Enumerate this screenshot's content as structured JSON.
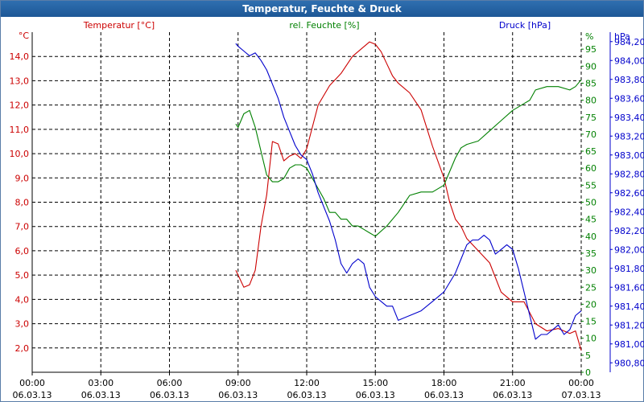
{
  "window": {
    "title": "Temperatur, Feuchte & Druck"
  },
  "colors": {
    "temperature": "#cc0000",
    "humidity": "#008000",
    "pressure": "#0000cc",
    "grid": "#000000",
    "title_bg": "#1d5796"
  },
  "chart_data": {
    "type": "line",
    "title": "Temperatur, Feuchte & Druck",
    "x_axis": {
      "range_hours": [
        0,
        24
      ],
      "ticks": [
        {
          "hour": 0,
          "time": "00:00",
          "date": "06.03.13"
        },
        {
          "hour": 3,
          "time": "03:00",
          "date": "06.03.13"
        },
        {
          "hour": 6,
          "time": "06:00",
          "date": "06.03.13"
        },
        {
          "hour": 9,
          "time": "09:00",
          "date": "06.03.13"
        },
        {
          "hour": 12,
          "time": "12:00",
          "date": "06.03.13"
        },
        {
          "hour": 15,
          "time": "15:00",
          "date": "06.03.13"
        },
        {
          "hour": 18,
          "time": "18:00",
          "date": "06.03.13"
        },
        {
          "hour": 21,
          "time": "21:00",
          "date": "06.03.13"
        },
        {
          "hour": 24,
          "time": "00:00",
          "date": "07.03.13"
        }
      ]
    },
    "axes": {
      "temperature": {
        "label": "Temperatur [°C]",
        "unit": "°C",
        "range": [
          1.0,
          15.0
        ],
        "ticks": [
          [
            "2,0",
            2
          ],
          [
            "3,0",
            3
          ],
          [
            "4,0",
            4
          ],
          [
            "5,0",
            5
          ],
          [
            "6,0",
            6
          ],
          [
            "7,0",
            7
          ],
          [
            "8,0",
            8
          ],
          [
            "9,0",
            9
          ],
          [
            "10,0",
            10
          ],
          [
            "11,0",
            11
          ],
          [
            "12,0",
            12
          ],
          [
            "13,0",
            13
          ],
          [
            "14,0",
            14
          ]
        ]
      },
      "humidity": {
        "label": "rel. Feuchte [%]",
        "unit": "%",
        "range": [
          0,
          100
        ],
        "ticks": [
          [
            "0",
            0
          ],
          [
            "5",
            5
          ],
          [
            "10",
            10
          ],
          [
            "15",
            15
          ],
          [
            "20",
            20
          ],
          [
            "25",
            25
          ],
          [
            "30",
            30
          ],
          [
            "35",
            35
          ],
          [
            "40",
            40
          ],
          [
            "45",
            45
          ],
          [
            "50",
            50
          ],
          [
            "55",
            55
          ],
          [
            "60",
            60
          ],
          [
            "65",
            65
          ],
          [
            "70",
            70
          ],
          [
            "75",
            75
          ],
          [
            "80",
            80
          ],
          [
            "85",
            85
          ],
          [
            "90",
            90
          ],
          [
            "95",
            95
          ]
        ]
      },
      "pressure": {
        "label": "Druck [hPa]",
        "unit": "hPa",
        "range": [
          980.7,
          984.3
        ],
        "ticks": [
          [
            "980,80",
            980.8
          ],
          [
            "981,00",
            981.0
          ],
          [
            "981,20",
            981.2
          ],
          [
            "981,40",
            981.4
          ],
          [
            "981,60",
            981.6
          ],
          [
            "981,80",
            981.8
          ],
          [
            "982,00",
            982.0
          ],
          [
            "982,20",
            982.2
          ],
          [
            "982,40",
            982.4
          ],
          [
            "982,60",
            982.6
          ],
          [
            "982,80",
            982.8
          ],
          [
            "983,00",
            983.0
          ],
          [
            "983,20",
            983.2
          ],
          [
            "983,40",
            983.4
          ],
          [
            "983,60",
            983.6
          ],
          [
            "983,80",
            983.8
          ],
          [
            "984,00",
            984.0
          ],
          [
            "984,20",
            984.2
          ]
        ]
      }
    },
    "series": [
      {
        "name": "Temperatur [°C]",
        "axis": "temperature",
        "x": [
          8.9,
          9.0,
          9.25,
          9.5,
          9.75,
          10.0,
          10.25,
          10.5,
          10.75,
          11.0,
          11.25,
          11.5,
          11.75,
          12.0,
          12.5,
          13.0,
          13.5,
          14.0,
          14.5,
          14.75,
          15.0,
          15.25,
          15.5,
          15.75,
          16.0,
          16.5,
          17.0,
          17.5,
          18.0,
          18.25,
          18.5,
          18.75,
          19.0,
          19.5,
          20.0,
          20.5,
          21.0,
          21.5,
          22.0,
          22.5,
          23.0,
          23.5,
          23.75,
          24.0
        ],
        "values": [
          5.2,
          5.0,
          4.5,
          4.6,
          5.2,
          7.0,
          8.3,
          10.5,
          10.4,
          9.7,
          9.9,
          10.0,
          9.8,
          10.2,
          12.0,
          12.8,
          13.3,
          14.0,
          14.4,
          14.6,
          14.5,
          14.2,
          13.7,
          13.2,
          12.9,
          12.5,
          11.8,
          10.3,
          9.0,
          8.0,
          7.3,
          7.0,
          6.5,
          6.0,
          5.5,
          4.3,
          3.9,
          3.9,
          3.0,
          2.7,
          2.8,
          2.6,
          2.7,
          1.9
        ]
      },
      {
        "name": "rel. Feuchte [%]",
        "axis": "humidity",
        "x": [
          8.9,
          9.0,
          9.25,
          9.5,
          9.75,
          10.0,
          10.25,
          10.5,
          10.75,
          11.0,
          11.25,
          11.5,
          11.75,
          12.0,
          12.25,
          12.5,
          12.75,
          13.0,
          13.25,
          13.5,
          13.75,
          14.0,
          14.25,
          14.5,
          14.75,
          15.0,
          15.5,
          16.0,
          16.5,
          17.0,
          17.5,
          18.0,
          18.25,
          18.5,
          18.75,
          19.0,
          19.5,
          20.0,
          20.5,
          21.0,
          21.5,
          21.75,
          22.0,
          22.5,
          23.0,
          23.5,
          23.75,
          24.0
        ],
        "values": [
          73,
          72,
          76,
          77,
          72,
          65,
          58,
          56,
          56,
          57,
          60,
          61,
          61,
          60,
          57,
          54,
          51,
          47,
          47,
          45,
          45,
          43,
          43,
          42,
          41,
          40,
          43,
          47,
          52,
          53,
          53,
          55,
          59,
          63,
          66,
          67,
          68,
          71,
          74,
          77,
          79,
          80,
          83,
          84,
          84,
          83,
          84,
          86
        ]
      },
      {
        "name": "Druck [hPa]",
        "axis": "pressure",
        "x": [
          8.9,
          9.0,
          9.25,
          9.5,
          9.75,
          10.0,
          10.25,
          10.5,
          10.75,
          11.0,
          11.25,
          11.5,
          11.75,
          12.0,
          12.25,
          12.5,
          12.75,
          13.0,
          13.25,
          13.5,
          13.75,
          14.0,
          14.25,
          14.5,
          14.75,
          15.0,
          15.25,
          15.5,
          15.75,
          16.0,
          16.5,
          17.0,
          17.5,
          18.0,
          18.25,
          18.5,
          18.75,
          19.0,
          19.25,
          19.5,
          19.75,
          20.0,
          20.25,
          20.5,
          20.75,
          21.0,
          21.25,
          21.5,
          21.75,
          22.0,
          22.25,
          22.5,
          22.75,
          23.0,
          23.25,
          23.5,
          23.75,
          24.0
        ],
        "values": [
          984.18,
          984.15,
          984.1,
          984.05,
          984.08,
          984.0,
          983.9,
          983.75,
          983.6,
          983.4,
          983.25,
          983.1,
          983.0,
          982.95,
          982.8,
          982.6,
          982.45,
          982.3,
          982.1,
          981.85,
          981.75,
          981.85,
          981.9,
          981.85,
          981.6,
          981.5,
          981.45,
          981.4,
          981.4,
          981.25,
          981.3,
          981.35,
          981.45,
          981.55,
          981.65,
          981.75,
          981.9,
          982.05,
          982.1,
          982.1,
          982.15,
          982.1,
          981.95,
          982.0,
          982.05,
          982.0,
          981.8,
          981.55,
          981.3,
          981.05,
          981.1,
          981.1,
          981.15,
          981.2,
          981.1,
          981.15,
          981.3,
          981.35
        ]
      }
    ]
  }
}
